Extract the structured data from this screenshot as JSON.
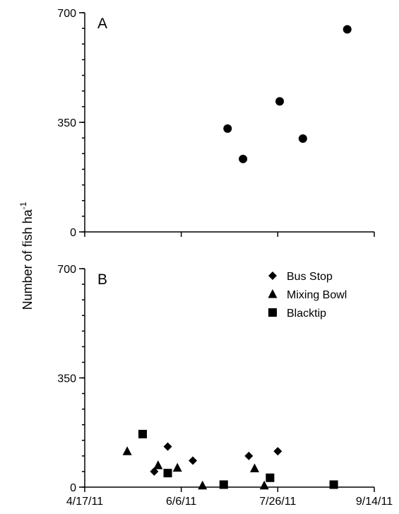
{
  "chart_data": [
    {
      "type": "scatter",
      "panel_label": "A",
      "ylabel": "Number of fish ha",
      "ylabel_superscript": "-1",
      "x_type": "date",
      "xlim": [
        "2011-04-17",
        "2011-09-14"
      ],
      "ylim": [
        0,
        700
      ],
      "y_ticks": [
        0,
        350,
        700
      ],
      "x_tick_labels": [
        "4/17/11",
        "6/6/11",
        "7/26/11",
        "9/14/11"
      ],
      "grid": false,
      "legend": null,
      "series": [
        {
          "marker": "circle",
          "points": [
            {
              "x": "2011-06-30",
              "y": 330
            },
            {
              "x": "2011-07-08",
              "y": 233
            },
            {
              "x": "2011-07-27",
              "y": 417
            },
            {
              "x": "2011-08-08",
              "y": 298
            },
            {
              "x": "2011-08-31",
              "y": 647
            }
          ]
        }
      ]
    },
    {
      "type": "scatter",
      "panel_label": "B",
      "x_type": "date",
      "xlim": [
        "2011-04-17",
        "2011-09-14"
      ],
      "ylim": [
        0,
        700
      ],
      "y_ticks": [
        0,
        350,
        700
      ],
      "x_tick_labels": [
        "4/17/11",
        "6/6/11",
        "7/26/11",
        "9/14/11"
      ],
      "grid": false,
      "legend": "top-right",
      "series": [
        {
          "name": "Bus Stop",
          "marker": "diamond",
          "points": [
            {
              "x": "2011-05-23",
              "y": 50
            },
            {
              "x": "2011-05-30",
              "y": 130
            },
            {
              "x": "2011-06-12",
              "y": 85
            },
            {
              "x": "2011-07-11",
              "y": 100
            },
            {
              "x": "2011-07-26",
              "y": 115
            }
          ]
        },
        {
          "name": "Mixing Bowl",
          "marker": "triangle",
          "points": [
            {
              "x": "2011-05-09",
              "y": 115
            },
            {
              "x": "2011-05-25",
              "y": 70
            },
            {
              "x": "2011-06-04",
              "y": 62
            },
            {
              "x": "2011-06-17",
              "y": 5
            },
            {
              "x": "2011-07-14",
              "y": 60
            },
            {
              "x": "2011-07-19",
              "y": 5
            }
          ]
        },
        {
          "name": "Blacktip",
          "marker": "square",
          "points": [
            {
              "x": "2011-05-17",
              "y": 170
            },
            {
              "x": "2011-05-30",
              "y": 45
            },
            {
              "x": "2011-06-28",
              "y": 8
            },
            {
              "x": "2011-07-22",
              "y": 30
            },
            {
              "x": "2011-08-24",
              "y": 8
            }
          ]
        }
      ]
    }
  ]
}
